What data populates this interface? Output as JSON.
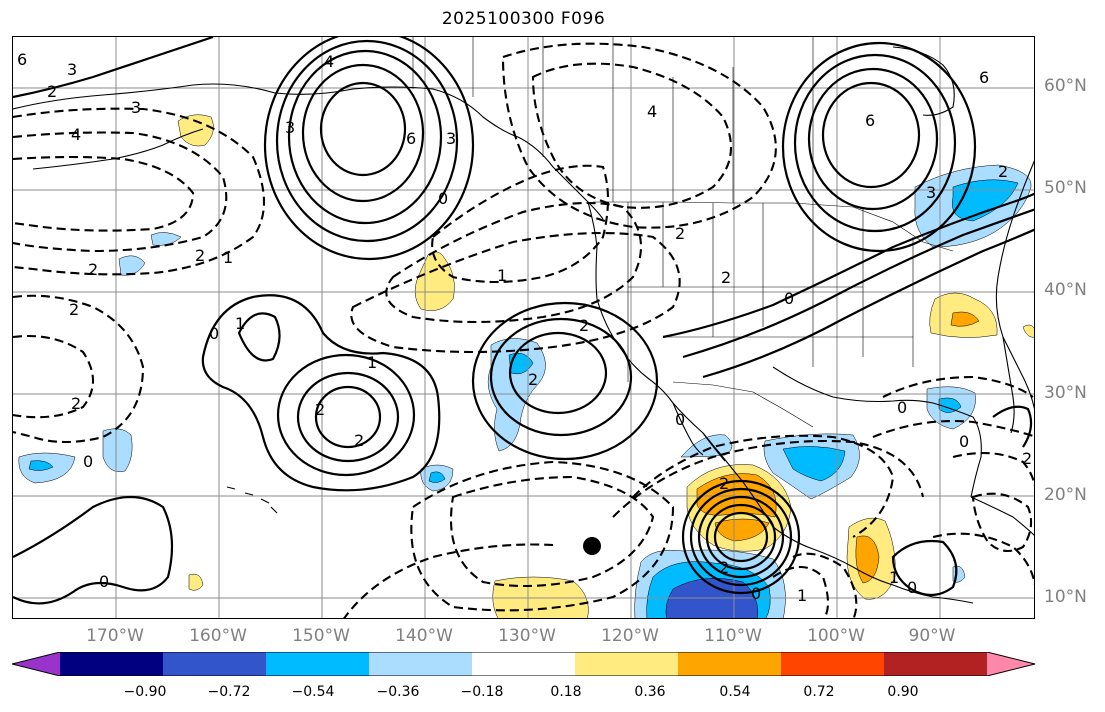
{
  "title": "2025100300 F096",
  "lat_labels": [
    "60°N",
    "50°N",
    "40°N",
    "30°N",
    "20°N",
    "10°N"
  ],
  "lon_labels": [
    "170°W",
    "160°W",
    "150°W",
    "140°W",
    "130°W",
    "120°W",
    "110°W",
    "100°W",
    "90°W"
  ],
  "contour_labels": [
    {
      "text": "6"
    },
    {
      "text": "3"
    },
    {
      "text": "2"
    },
    {
      "text": "3"
    },
    {
      "text": "4"
    },
    {
      "text": "4"
    },
    {
      "text": "3"
    },
    {
      "text": "6"
    },
    {
      "text": "3"
    },
    {
      "text": "0"
    },
    {
      "text": "6"
    },
    {
      "text": "4"
    },
    {
      "text": "6"
    },
    {
      "text": "3"
    },
    {
      "text": "2"
    },
    {
      "text": "2"
    },
    {
      "text": "2"
    },
    {
      "text": "1"
    },
    {
      "text": "2"
    },
    {
      "text": "2"
    },
    {
      "text": "1"
    },
    {
      "text": "2"
    },
    {
      "text": "2"
    },
    {
      "text": "0"
    },
    {
      "text": "2"
    },
    {
      "text": "0"
    },
    {
      "text": "1"
    },
    {
      "text": "2"
    },
    {
      "text": "2"
    },
    {
      "text": "1"
    },
    {
      "text": "2"
    },
    {
      "text": "0"
    },
    {
      "text": "0"
    },
    {
      "text": "0"
    },
    {
      "text": "0"
    },
    {
      "text": "2"
    },
    {
      "text": "2"
    },
    {
      "text": "2"
    },
    {
      "text": "0"
    },
    {
      "text": "1"
    },
    {
      "text": "1"
    },
    {
      "text": "0"
    },
    {
      "text": "0"
    }
  ],
  "colorbar": {
    "colors": [
      "#9933cc",
      "#000080",
      "#3355cc",
      "#00bbff",
      "#aaddff",
      "#ffffff",
      "#ffeb80",
      "#ffa500",
      "#ff4500",
      "#b22222",
      "#ff88aa"
    ],
    "ticks": [
      "−0.90",
      "−0.72",
      "−0.54",
      "−0.36",
      "−0.18",
      "0.18",
      "0.36",
      "0.54",
      "0.72",
      "0.90"
    ]
  }
}
